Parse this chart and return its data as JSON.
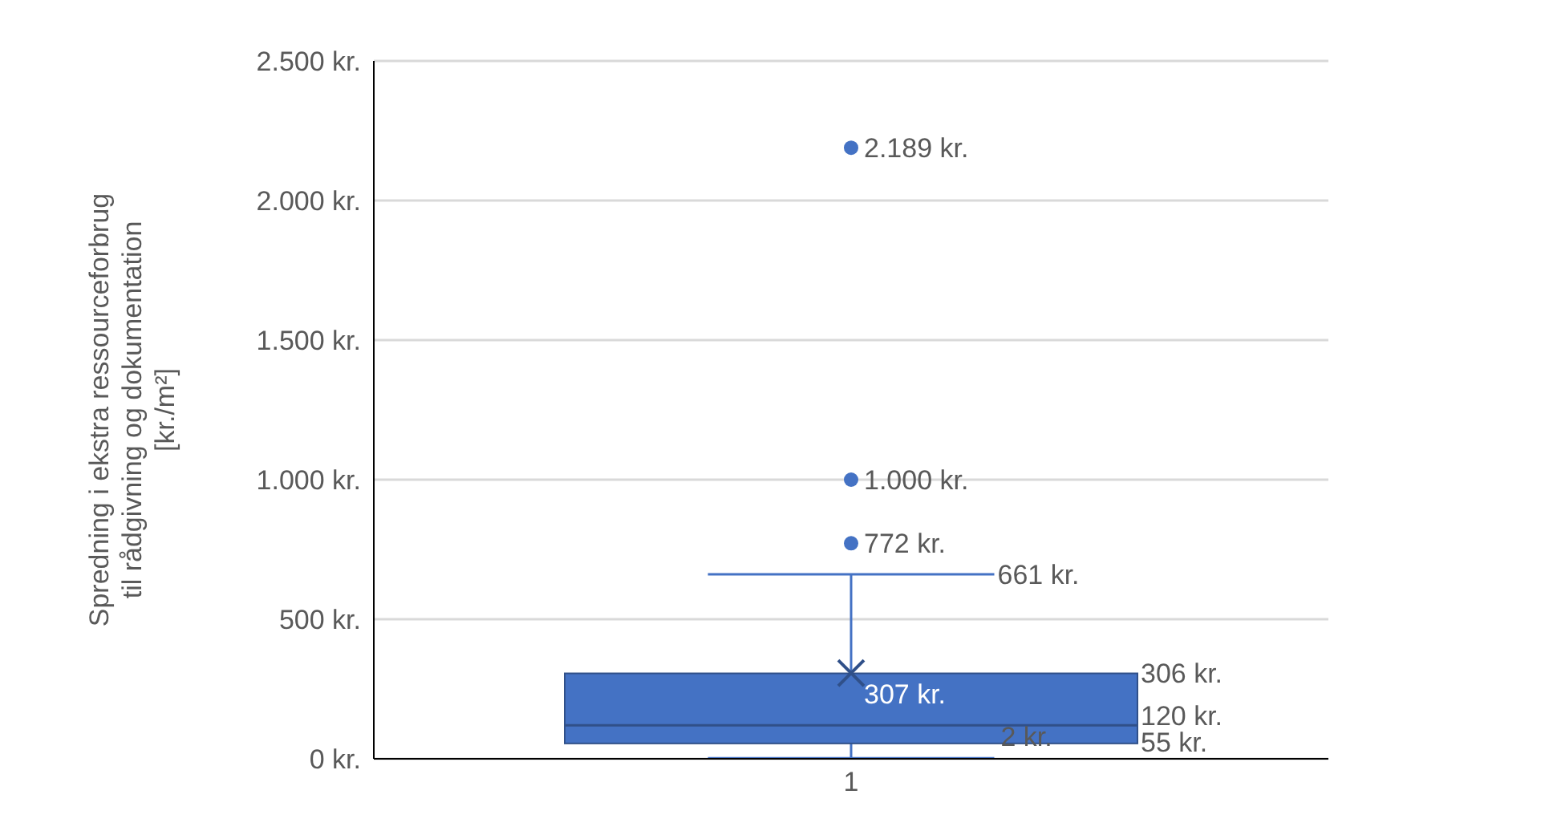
{
  "chart_data": {
    "type": "box",
    "ylabel": "Spredning i ekstra ressourceforbrug\ntil rådgivning og dokumentation\n[kr./m²]",
    "categories": [
      "1"
    ],
    "series": [
      {
        "color": "#4472c4",
        "boxes": [
          {
            "low": 2,
            "q1": 55,
            "median": 120,
            "q3": 306,
            "high": 661,
            "mean": 307,
            "outliers": [
              772,
              1000,
              2189
            ]
          }
        ]
      }
    ],
    "ylim": [
      0,
      2500
    ],
    "yticks": [
      {
        "value": 0,
        "label": "0 kr."
      },
      {
        "value": 500,
        "label": "500 kr."
      },
      {
        "value": 1000,
        "label": "1.000 kr."
      },
      {
        "value": 1500,
        "label": "1.500 kr."
      },
      {
        "value": 2000,
        "label": "2.000 kr."
      },
      {
        "value": 2500,
        "label": "2.500 kr."
      }
    ],
    "grid": "y",
    "annotations": [
      "2.189 kr.",
      "1.000 kr.",
      "772 kr.",
      "661 kr.",
      "307 kr.",
      "306 kr.",
      "120 kr.",
      "55 kr.",
      "2 kr."
    ]
  }
}
